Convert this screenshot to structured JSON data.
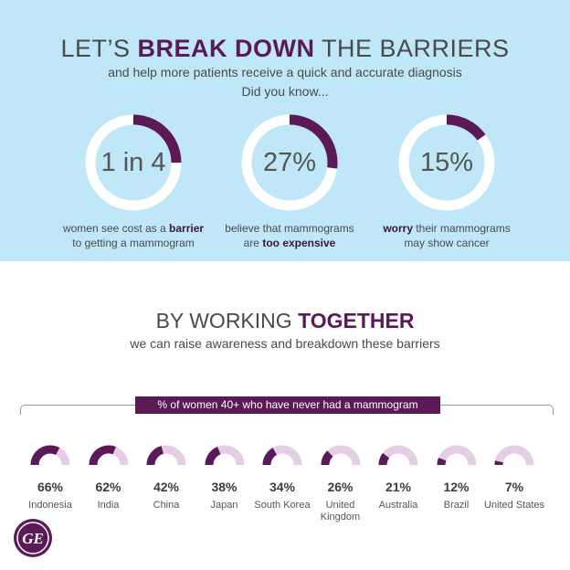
{
  "header": {
    "title_pre": "LET’S ",
    "title_bold": "BREAK DOWN",
    "title_post": " THE BARRIERS",
    "subtitle": "and help more patients receive a quick and accurate diagnosis",
    "did_you_know": "Did you know..."
  },
  "stats": [
    {
      "value": "1 in 4",
      "fraction": 0.25,
      "cap_pre": "women see cost as a ",
      "cap_bold": "barrier",
      "cap_post": "",
      "cap_line2": "to getting a mammogram"
    },
    {
      "value": "27%",
      "fraction": 0.27,
      "cap_pre": "believe that mammograms",
      "cap_bold": "",
      "cap_post": "",
      "cap_line2_pre": "are ",
      "cap_line2_bold": "too expensive"
    },
    {
      "value": "15%",
      "fraction": 0.15,
      "cap_bold": "worry",
      "cap_post": " their mammograms",
      "cap_line2": "may show cancer"
    }
  ],
  "section2": {
    "title_pre": "BY WORKING ",
    "title_bold": "TOGETHER",
    "subtitle": "we can raise awareness and breakdown these barriers",
    "banner": "% of women 40+  who have never had a mammogram"
  },
  "countries": [
    {
      "pct": "66%",
      "value": 0.66,
      "name": "Indonesia"
    },
    {
      "pct": "62%",
      "value": 0.62,
      "name": "India"
    },
    {
      "pct": "42%",
      "value": 0.42,
      "name": "China"
    },
    {
      "pct": "38%",
      "value": 0.38,
      "name": "Japan"
    },
    {
      "pct": "34%",
      "value": 0.34,
      "name": "South Korea"
    },
    {
      "pct": "26%",
      "value": 0.26,
      "name": "United Kingdom"
    },
    {
      "pct": "21%",
      "value": 0.21,
      "name": "Australia"
    },
    {
      "pct": "12%",
      "value": 0.12,
      "name": "Brazil"
    },
    {
      "pct": "7%",
      "value": 0.07,
      "name": "United States"
    }
  ],
  "colors": {
    "accent": "#5b1a57",
    "light_track": "#e6cde6",
    "top_bg": "#bfe7f7"
  },
  "logo": {
    "icon": "ge-logo-icon",
    "text": "GE"
  }
}
